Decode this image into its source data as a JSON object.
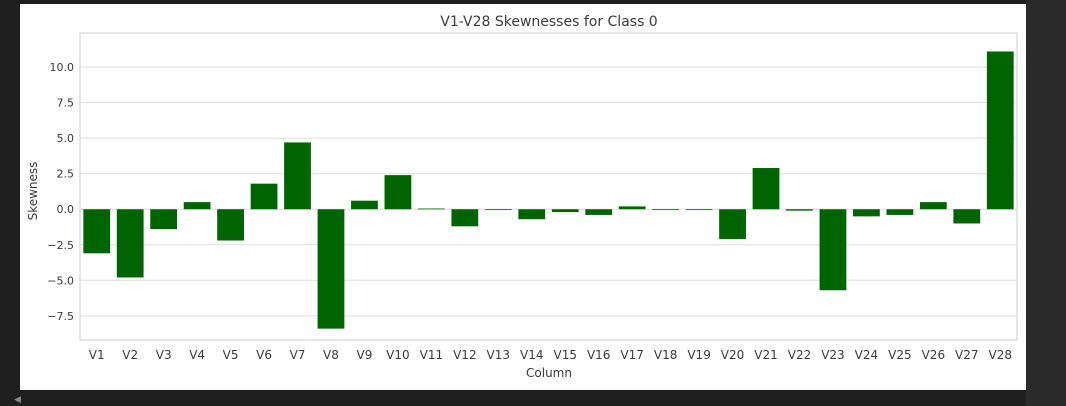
{
  "chart_data": {
    "type": "bar",
    "title": "V1-V28 Skewnesses for Class 0",
    "xlabel": "Column",
    "ylabel": "Skewness",
    "categories": [
      "V1",
      "V2",
      "V3",
      "V4",
      "V5",
      "V6",
      "V7",
      "V8",
      "V9",
      "V10",
      "V11",
      "V12",
      "V13",
      "V14",
      "V15",
      "V16",
      "V17",
      "V18",
      "V19",
      "V20",
      "V21",
      "V22",
      "V23",
      "V24",
      "V25",
      "V26",
      "V27",
      "V28"
    ],
    "values": [
      -3.1,
      -4.8,
      -1.4,
      0.5,
      -2.2,
      1.8,
      4.7,
      -8.4,
      0.6,
      2.4,
      0.05,
      -1.2,
      0.0,
      -0.7,
      -0.2,
      -0.4,
      0.2,
      -0.05,
      0.0,
      -2.1,
      2.9,
      -0.1,
      -5.7,
      -0.5,
      -0.4,
      0.5,
      -1.0,
      11.1
    ],
    "yticks": [
      -7.5,
      -5.0,
      -2.5,
      0.0,
      2.5,
      5.0,
      7.5,
      10.0
    ],
    "ytick_labels": [
      "−7.5",
      "−5.0",
      "−2.5",
      "0.0",
      "2.5",
      "5.0",
      "7.5",
      "10.0"
    ],
    "ylim": [
      -9.2,
      12.4
    ],
    "bar_color": "#006400",
    "grid": true
  }
}
